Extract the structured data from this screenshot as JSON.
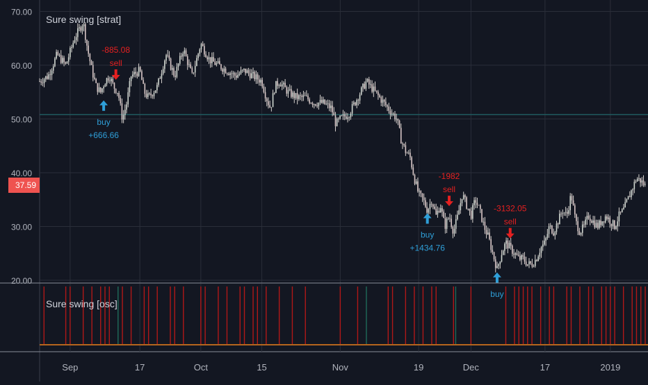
{
  "colors": {
    "background": "#131722",
    "grid": "#2a2e39",
    "axis_text": "#b2b5be",
    "candle": "#d9d4d0",
    "buy": "#2f9fd8",
    "sell": "#e52020",
    "hline": "#1f5a5e",
    "price_tag": "#ef5350",
    "osc_red": "#b01818",
    "osc_green": "#1f6b5a",
    "osc_base": "#b5651d"
  },
  "main_pane": {
    "title": "Sure swing [strat]",
    "price_tag": "37.59",
    "horizontal_line_level": 50.8
  },
  "osc_pane": {
    "title": "Sure swing [osc]",
    "bars": [
      {
        "d": 1,
        "c": "r"
      },
      {
        "d": 6,
        "c": "r"
      },
      {
        "d": 7,
        "c": "r"
      },
      {
        "d": 10,
        "c": "r"
      },
      {
        "d": 12,
        "c": "r"
      },
      {
        "d": 14,
        "c": "r"
      },
      {
        "d": 15,
        "c": "r"
      },
      {
        "d": 16,
        "c": "r"
      },
      {
        "d": 19,
        "c": "r"
      },
      {
        "d": 21,
        "c": "r"
      },
      {
        "d": 24,
        "c": "r"
      },
      {
        "d": 25,
        "c": "r"
      },
      {
        "d": 27,
        "c": "r"
      },
      {
        "d": 30,
        "c": "r"
      },
      {
        "d": 31,
        "c": "r"
      },
      {
        "d": 33,
        "c": "r"
      },
      {
        "d": 37,
        "c": "r"
      },
      {
        "d": 38,
        "c": "r"
      },
      {
        "d": 41,
        "c": "r"
      },
      {
        "d": 43,
        "c": "r"
      },
      {
        "d": 46,
        "c": "r"
      },
      {
        "d": 47,
        "c": "r"
      },
      {
        "d": 49,
        "c": "r"
      },
      {
        "d": 50,
        "c": "r"
      },
      {
        "d": 52,
        "c": "r"
      },
      {
        "d": 55,
        "c": "r"
      },
      {
        "d": 58,
        "c": "r"
      },
      {
        "d": 61,
        "c": "r"
      },
      {
        "d": 69,
        "c": "r"
      },
      {
        "d": 73,
        "c": "r"
      },
      {
        "d": 80,
        "c": "r"
      },
      {
        "d": 81,
        "c": "r"
      },
      {
        "d": 84,
        "c": "r"
      },
      {
        "d": 86,
        "c": "r"
      },
      {
        "d": 88,
        "c": "r"
      },
      {
        "d": 90,
        "c": "r"
      },
      {
        "d": 91,
        "c": "r"
      },
      {
        "d": 95,
        "c": "r"
      },
      {
        "d": 99,
        "c": "r"
      },
      {
        "d": 107,
        "c": "r"
      },
      {
        "d": 109,
        "c": "r"
      },
      {
        "d": 110,
        "c": "r"
      },
      {
        "d": 111,
        "c": "r"
      },
      {
        "d": 112,
        "c": "r"
      },
      {
        "d": 113,
        "c": "r"
      },
      {
        "d": 115,
        "c": "r"
      },
      {
        "d": 117,
        "c": "r"
      },
      {
        "d": 118,
        "c": "r"
      },
      {
        "d": 121,
        "c": "r"
      },
      {
        "d": 122,
        "c": "r"
      },
      {
        "d": 124,
        "c": "r"
      },
      {
        "d": 126,
        "c": "r"
      },
      {
        "d": 127,
        "c": "r"
      },
      {
        "d": 129,
        "c": "r"
      },
      {
        "d": 130,
        "c": "r"
      },
      {
        "d": 131,
        "c": "r"
      },
      {
        "d": 132,
        "c": "r"
      },
      {
        "d": 134,
        "c": "r"
      },
      {
        "d": 136,
        "c": "r"
      },
      {
        "d": 137,
        "c": "r"
      },
      {
        "d": 138,
        "c": "r"
      },
      {
        "d": 139,
        "c": "r"
      },
      {
        "d": 18,
        "c": "g"
      },
      {
        "d": 75,
        "c": "g"
      },
      {
        "d": 95.5,
        "c": "g"
      }
    ]
  },
  "x_axis": {
    "ticks": [
      {
        "label": "Sep",
        "d": 7
      },
      {
        "label": "17",
        "d": 23
      },
      {
        "label": "Oct",
        "d": 37
      },
      {
        "label": "15",
        "d": 51
      },
      {
        "label": "Nov",
        "d": 69
      },
      {
        "label": "19",
        "d": 87
      },
      {
        "label": "Dec",
        "d": 99
      },
      {
        "label": "17",
        "d": 116
      },
      {
        "label": "2019",
        "d": 131
      }
    ]
  },
  "y_axis": {
    "min": 20,
    "max": 70,
    "ticks": [
      "70.00",
      "60.00",
      "50.00",
      "40.00",
      "30.00",
      "20.00"
    ]
  },
  "annotations": [
    {
      "type": "buy",
      "top": "buy",
      "bottom": "+666.66",
      "d": 14.7,
      "price": 55.0
    },
    {
      "type": "sell",
      "top": "-885.08",
      "bottom": "sell",
      "d": 17.5,
      "price": 56.0
    },
    {
      "type": "buy",
      "top": "buy",
      "bottom": "+1434.76",
      "d": 89.0,
      "price": 34.0
    },
    {
      "type": "sell",
      "top": "-1982",
      "bottom": "sell",
      "d": 94.0,
      "price": 32.5
    },
    {
      "type": "buy",
      "top": "buy",
      "bottom": "",
      "d": 105.0,
      "price": 23.0
    },
    {
      "type": "sell",
      "top": "-3132.05",
      "bottom": "sell",
      "d": 108.0,
      "price": 26.5
    }
  ],
  "chart_data": {
    "type": "line",
    "title": "Sure swing [strat]",
    "xlabel": "",
    "ylabel": "",
    "ylim": [
      20,
      70
    ],
    "x_tick_labels": [
      "Sep",
      "17",
      "Oct",
      "15",
      "Nov",
      "19",
      "Dec",
      "17",
      "2019"
    ],
    "y_tick_labels": [
      "70.00",
      "60.00",
      "50.00",
      "40.00",
      "30.00",
      "20.00"
    ],
    "price_points": [
      {
        "d": 0,
        "y": 57
      },
      {
        "d": 2,
        "y": 58
      },
      {
        "d": 4,
        "y": 62
      },
      {
        "d": 6,
        "y": 60
      },
      {
        "d": 8,
        "y": 65
      },
      {
        "d": 10,
        "y": 68
      },
      {
        "d": 11,
        "y": 63
      },
      {
        "d": 12,
        "y": 59
      },
      {
        "d": 13,
        "y": 56
      },
      {
        "d": 14,
        "y": 55
      },
      {
        "d": 15,
        "y": 57
      },
      {
        "d": 16,
        "y": 58
      },
      {
        "d": 17,
        "y": 56
      },
      {
        "d": 18,
        "y": 55
      },
      {
        "d": 19,
        "y": 50
      },
      {
        "d": 20,
        "y": 53
      },
      {
        "d": 21,
        "y": 58
      },
      {
        "d": 23,
        "y": 59
      },
      {
        "d": 24,
        "y": 55
      },
      {
        "d": 25,
        "y": 54
      },
      {
        "d": 27,
        "y": 56
      },
      {
        "d": 29,
        "y": 62
      },
      {
        "d": 31,
        "y": 58
      },
      {
        "d": 33,
        "y": 63
      },
      {
        "d": 35,
        "y": 58
      },
      {
        "d": 37,
        "y": 64
      },
      {
        "d": 39,
        "y": 61
      },
      {
        "d": 41,
        "y": 60
      },
      {
        "d": 43,
        "y": 59
      },
      {
        "d": 45,
        "y": 58
      },
      {
        "d": 47,
        "y": 59
      },
      {
        "d": 49,
        "y": 58
      },
      {
        "d": 51,
        "y": 57
      },
      {
        "d": 52,
        "y": 54
      },
      {
        "d": 53,
        "y": 52
      },
      {
        "d": 54,
        "y": 56
      },
      {
        "d": 55,
        "y": 57
      },
      {
        "d": 57,
        "y": 55
      },
      {
        "d": 59,
        "y": 54
      },
      {
        "d": 61,
        "y": 54
      },
      {
        "d": 63,
        "y": 53
      },
      {
        "d": 65,
        "y": 53
      },
      {
        "d": 67,
        "y": 52
      },
      {
        "d": 68,
        "y": 49
      },
      {
        "d": 69,
        "y": 50
      },
      {
        "d": 71,
        "y": 51
      },
      {
        "d": 73,
        "y": 54
      },
      {
        "d": 75,
        "y": 57
      },
      {
        "d": 76,
        "y": 56
      },
      {
        "d": 78,
        "y": 54
      },
      {
        "d": 80,
        "y": 52
      },
      {
        "d": 82,
        "y": 50
      },
      {
        "d": 83,
        "y": 46
      },
      {
        "d": 84,
        "y": 44
      },
      {
        "d": 85,
        "y": 43
      },
      {
        "d": 86,
        "y": 39
      },
      {
        "d": 87,
        "y": 36
      },
      {
        "d": 88,
        "y": 35
      },
      {
        "d": 89,
        "y": 33
      },
      {
        "d": 90,
        "y": 35
      },
      {
        "d": 91,
        "y": 32
      },
      {
        "d": 92,
        "y": 34
      },
      {
        "d": 93,
        "y": 30
      },
      {
        "d": 94,
        "y": 32
      },
      {
        "d": 95,
        "y": 29
      },
      {
        "d": 96,
        "y": 32
      },
      {
        "d": 97,
        "y": 36
      },
      {
        "d": 98,
        "y": 34
      },
      {
        "d": 99,
        "y": 32
      },
      {
        "d": 100,
        "y": 35
      },
      {
        "d": 101,
        "y": 33
      },
      {
        "d": 102,
        "y": 30
      },
      {
        "d": 103,
        "y": 28
      },
      {
        "d": 104,
        "y": 25
      },
      {
        "d": 105,
        "y": 22
      },
      {
        "d": 106,
        "y": 25
      },
      {
        "d": 107,
        "y": 27
      },
      {
        "d": 108,
        "y": 26
      },
      {
        "d": 109,
        "y": 25
      },
      {
        "d": 110,
        "y": 24
      },
      {
        "d": 111,
        "y": 24
      },
      {
        "d": 112,
        "y": 23
      },
      {
        "d": 113,
        "y": 23
      },
      {
        "d": 114,
        "y": 24
      },
      {
        "d": 115,
        "y": 26
      },
      {
        "d": 116,
        "y": 27
      },
      {
        "d": 117,
        "y": 30
      },
      {
        "d": 118,
        "y": 29
      },
      {
        "d": 119,
        "y": 31
      },
      {
        "d": 120,
        "y": 33
      },
      {
        "d": 121,
        "y": 32
      },
      {
        "d": 122,
        "y": 36
      },
      {
        "d": 123,
        "y": 31
      },
      {
        "d": 124,
        "y": 29
      },
      {
        "d": 125,
        "y": 30
      },
      {
        "d": 126,
        "y": 32
      },
      {
        "d": 127,
        "y": 31
      },
      {
        "d": 128,
        "y": 30
      },
      {
        "d": 129,
        "y": 31
      },
      {
        "d": 130,
        "y": 32
      },
      {
        "d": 131,
        "y": 31
      },
      {
        "d": 132,
        "y": 30
      },
      {
        "d": 133,
        "y": 32
      },
      {
        "d": 134,
        "y": 33
      },
      {
        "d": 135,
        "y": 35
      },
      {
        "d": 136,
        "y": 37
      },
      {
        "d": 137,
        "y": 39
      },
      {
        "d": 138,
        "y": 38.5
      },
      {
        "d": 139,
        "y": 37.6
      }
    ]
  }
}
